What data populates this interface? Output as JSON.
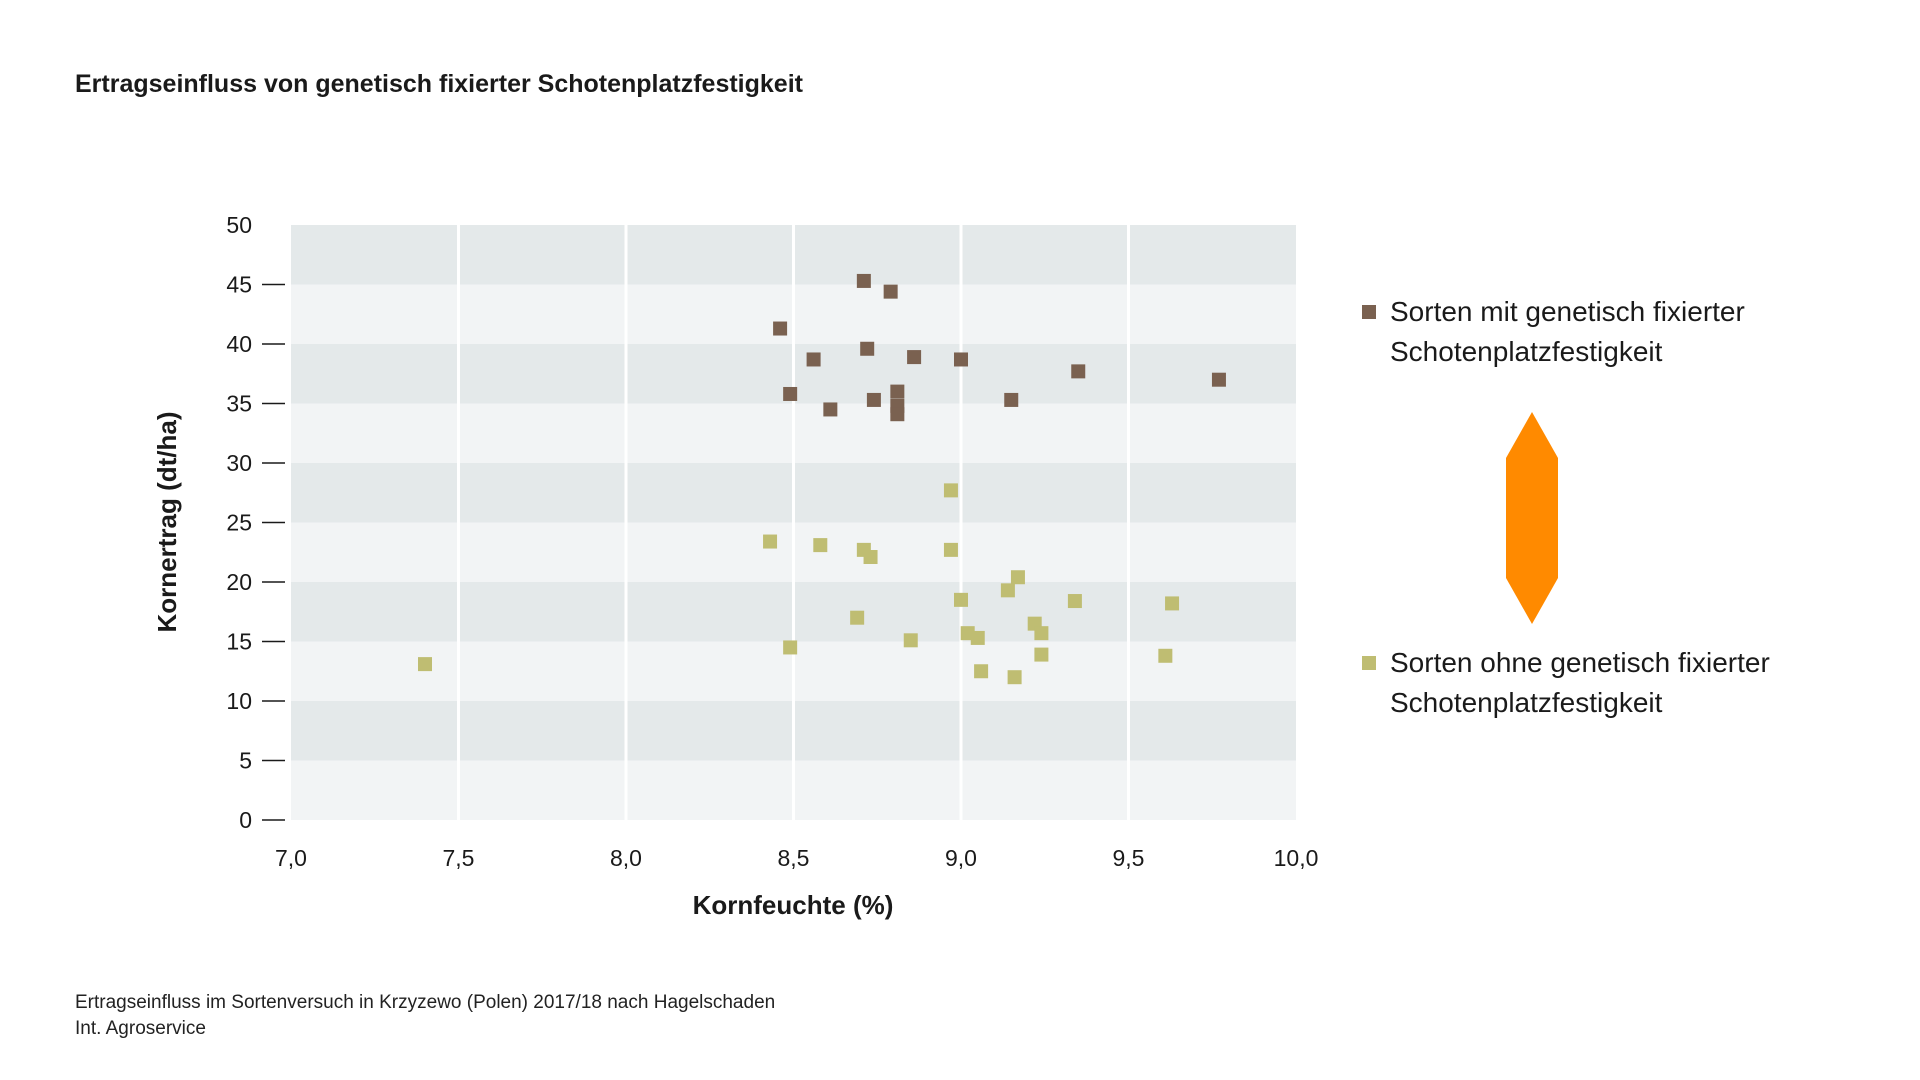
{
  "title": "Ertragseinfluss von genetisch fixierter Schotenplatzfestigkeit",
  "footer": {
    "line1": "Ertragseinfluss im Sortenversuch in Krzyzewo (Polen) 2017/18 nach Hagelschaden",
    "line2": "Int. Agroservice"
  },
  "colors": {
    "series_with": "#7a6150",
    "series_without": "#bfbd72",
    "band_dark": "#e4e9ea",
    "band_light": "#f2f4f5",
    "arrow": "#ff8a00"
  },
  "legend_icon": "orange-double-arrow-icon",
  "chart_data": {
    "type": "scatter",
    "xlabel": "Kornfeuchte (%)",
    "ylabel": "Kornertrag (dt/ha)",
    "xlim": [
      7.0,
      10.0
    ],
    "ylim": [
      0,
      50
    ],
    "x_ticks": [
      "7,0",
      "7,5",
      "8,0",
      "8,5",
      "9,0",
      "9,5",
      "10,0"
    ],
    "y_ticks": [
      "0",
      "5",
      "10",
      "15",
      "20",
      "25",
      "30",
      "35",
      "40",
      "45",
      "50"
    ],
    "grid": "vertical lines, alternating horizontal bands",
    "legend_placement": "right",
    "series": [
      {
        "name": "Sorten mit genetisch fixierter Schotenplatzfestigkeit",
        "points": [
          [
            8.71,
            45.3
          ],
          [
            8.79,
            44.4
          ],
          [
            8.46,
            41.3
          ],
          [
            8.72,
            39.6
          ],
          [
            8.56,
            38.7
          ],
          [
            8.86,
            38.9
          ],
          [
            9.0,
            38.7
          ],
          [
            9.35,
            37.7
          ],
          [
            9.77,
            37.0
          ],
          [
            8.49,
            35.8
          ],
          [
            8.81,
            36.0
          ],
          [
            8.74,
            35.3
          ],
          [
            9.15,
            35.3
          ],
          [
            8.61,
            34.5
          ],
          [
            8.81,
            34.8
          ],
          [
            8.81,
            34.1
          ]
        ]
      },
      {
        "name": "Sorten ohne genetisch fixierter Schotenplatzfestigkeit",
        "points": [
          [
            8.97,
            27.7
          ],
          [
            8.43,
            23.4
          ],
          [
            8.58,
            23.1
          ],
          [
            8.71,
            22.7
          ],
          [
            8.73,
            22.1
          ],
          [
            8.97,
            22.7
          ],
          [
            9.17,
            20.4
          ],
          [
            9.14,
            19.3
          ],
          [
            9.0,
            18.5
          ],
          [
            9.34,
            18.4
          ],
          [
            9.63,
            18.2
          ],
          [
            8.69,
            17.0
          ],
          [
            9.22,
            16.5
          ],
          [
            9.24,
            15.7
          ],
          [
            9.02,
            15.7
          ],
          [
            9.05,
            15.3
          ],
          [
            8.85,
            15.1
          ],
          [
            8.49,
            14.5
          ],
          [
            9.24,
            13.9
          ],
          [
            9.61,
            13.8
          ],
          [
            9.06,
            12.5
          ],
          [
            9.16,
            12.0
          ],
          [
            7.4,
            13.1
          ]
        ]
      }
    ]
  }
}
